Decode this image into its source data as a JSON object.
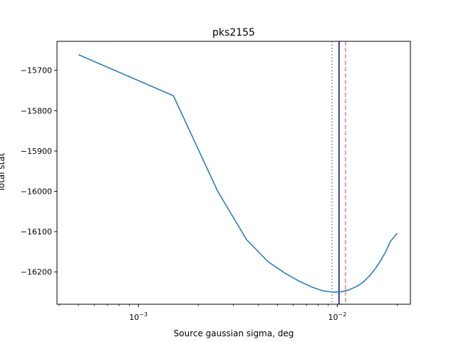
{
  "chart_data": {
    "type": "line",
    "title": "pks2155",
    "xlabel": "Source gaussian sigma, deg",
    "ylabel": "Total stat",
    "x_scale": "log",
    "xlim": [
      0.00039,
      0.0233
    ],
    "ylim": [
      -16280,
      -15628
    ],
    "x_ticks": [
      {
        "value": 0.001,
        "base": "10",
        "exp": "−3"
      },
      {
        "value": 0.01,
        "base": "10",
        "exp": "−2"
      }
    ],
    "y_ticks": [
      {
        "value": -15700,
        "label": "−15700"
      },
      {
        "value": -15800,
        "label": "−15800"
      },
      {
        "value": -15900,
        "label": "−15900"
      },
      {
        "value": -16000,
        "label": "−16000"
      },
      {
        "value": -16100,
        "label": "−16100"
      },
      {
        "value": -16200,
        "label": "−16200"
      }
    ],
    "grid": false,
    "series": [
      {
        "color": "#1f77b4",
        "x": [
          0.0005,
          0.0015,
          0.0025,
          0.0035,
          0.0045,
          0.0055,
          0.0065,
          0.0075,
          0.0085,
          0.0095,
          0.0105,
          0.0115,
          0.0125,
          0.0135,
          0.0145,
          0.0155,
          0.0165,
          0.0175,
          0.0185,
          0.02
        ],
        "y": [
          -15661,
          -15763,
          -15999,
          -16120,
          -16175,
          -16204,
          -16224,
          -16238,
          -16247,
          -16250,
          -16249,
          -16244,
          -16236,
          -16225,
          -16210,
          -16192,
          -16172,
          -16150,
          -16124,
          -16104
        ]
      }
    ],
    "reference_lines": [
      {
        "x": 0.0102,
        "color": "#000080",
        "style": "solid"
      },
      {
        "x": 0.0094,
        "color": "#8066bb",
        "style": "dotted"
      },
      {
        "x": 0.011,
        "color": "#f08080",
        "style": "dashed"
      }
    ]
  }
}
